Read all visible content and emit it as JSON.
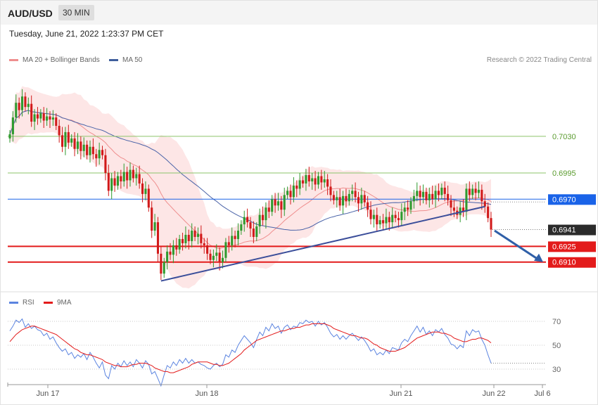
{
  "header": {
    "pair": "AUD/USD",
    "timeframe": "30 MIN",
    "datetime": "Tuesday, June 21, 2022 1:23:37 PM CET",
    "copyright": "Research © 2022 Trading Central"
  },
  "legend": {
    "ma20_label": "MA 20 + Bollinger Bands",
    "ma50_label": "MA 50",
    "rsi_label": "RSI",
    "ma9_label": "9MA"
  },
  "colors": {
    "bull": "#2e9a2e",
    "bear": "#d11a1a",
    "ma20": "#ef8e8e",
    "bollinger_fill": "#fde2e2",
    "ma50": "#4a63a8",
    "resistance": "#8cc46a",
    "support": "#e31b1b",
    "pivot": "#1a63e8",
    "trend": "#3b4e9a",
    "rsi": "#5b84e0",
    "rsi_ma": "#e31b1b"
  },
  "chart_data": [
    {
      "type": "candlestick",
      "title": "AUD/USD",
      "timeframe": "30 MIN",
      "x_tick_labels": [
        "Jun 17",
        "Jun 18",
        "Jun 21",
        "Jun 22",
        "Jul 6"
      ],
      "ylim": [
        0.6885,
        0.7095
      ],
      "last_price": 0.6941,
      "levels": [
        {
          "value": 0.703,
          "label": "0.7030",
          "role": "resistance",
          "line": "thin-green"
        },
        {
          "value": 0.6995,
          "label": "0.6995",
          "role": "resistance",
          "line": "thin-green"
        },
        {
          "value": 0.697,
          "label": "0.6970",
          "role": "pivot",
          "line": "blue"
        },
        {
          "value": 0.6941,
          "label": "0.6941",
          "role": "last-price",
          "line": "dotted"
        },
        {
          "value": 0.6925,
          "label": "0.6925",
          "role": "support",
          "line": "thick-red"
        },
        {
          "value": 0.691,
          "label": "0.6910",
          "role": "support",
          "line": "thick-red"
        }
      ],
      "indicators": [
        "MA 20 + Bollinger Bands",
        "MA 50"
      ],
      "annotations": [
        "rising trendline from Jun 18 low",
        "down arrow toward 0.6910"
      ],
      "series": [
        {
          "name": "close",
          "values": [
            0.7032,
            0.7048,
            0.7062,
            0.7055,
            0.7068,
            0.7058,
            0.7061,
            0.7044,
            0.7051,
            0.7047,
            0.7052,
            0.7045,
            0.7049,
            0.7046,
            0.7048,
            0.704,
            0.7031,
            0.702,
            0.7034,
            0.7024,
            0.7028,
            0.7018,
            0.7025,
            0.7016,
            0.7022,
            0.7012,
            0.702,
            0.7013,
            0.7009,
            0.7017,
            0.7012,
            0.6995,
            0.6978,
            0.699,
            0.6983,
            0.6992,
            0.6987,
            0.6996,
            0.6988,
            0.6998,
            0.699,
            0.6994,
            0.6985,
            0.6975,
            0.698,
            0.6962,
            0.694,
            0.6948,
            0.6918,
            0.6899,
            0.691,
            0.692,
            0.6917,
            0.6926,
            0.6922,
            0.6932,
            0.6928,
            0.6936,
            0.693,
            0.694,
            0.6934,
            0.6937,
            0.6928,
            0.6926,
            0.6918,
            0.6912,
            0.6916,
            0.6919,
            0.691,
            0.6914,
            0.6929,
            0.6926,
            0.6935,
            0.6932,
            0.694,
            0.6946,
            0.6953,
            0.6948,
            0.6942,
            0.6934,
            0.6944,
            0.6955,
            0.695,
            0.6962,
            0.6958,
            0.697,
            0.6964,
            0.6968,
            0.696,
            0.6974,
            0.6978,
            0.6972,
            0.6983,
            0.698,
            0.6988,
            0.6985,
            0.6993,
            0.6987,
            0.699,
            0.6984,
            0.6992,
            0.6986,
            0.6989,
            0.6982,
            0.6974,
            0.6969,
            0.6972,
            0.6964,
            0.6973,
            0.6968,
            0.6975,
            0.6978,
            0.6972,
            0.6966,
            0.6974,
            0.6967,
            0.696,
            0.6951,
            0.6955,
            0.6946,
            0.695,
            0.6947,
            0.6953,
            0.6948,
            0.6955,
            0.6952,
            0.695,
            0.6958,
            0.6962,
            0.696,
            0.6968,
            0.6973,
            0.6978,
            0.6972,
            0.6977,
            0.6969,
            0.6975,
            0.697,
            0.6978,
            0.6974,
            0.6981,
            0.6975,
            0.6969,
            0.6962,
            0.6959,
            0.6955,
            0.6962,
            0.6958,
            0.698,
            0.6974,
            0.698,
            0.6976,
            0.6979,
            0.6968,
            0.6963,
            0.6952,
            0.6941
          ]
        }
      ]
    },
    {
      "type": "line",
      "title": "RSI",
      "ylim": [
        20,
        80
      ],
      "y_ticks": [
        70,
        50,
        30
      ],
      "series": [
        {
          "name": "RSI",
          "values": [
            62,
            66,
            71,
            69,
            72,
            65,
            68,
            64,
            66,
            63,
            62,
            58,
            60,
            55,
            57,
            52,
            48,
            45,
            47,
            42,
            44,
            39,
            42,
            40,
            43,
            38,
            44,
            40,
            35,
            31,
            36,
            25,
            22,
            33,
            30,
            35,
            32,
            37,
            33,
            36,
            32,
            38,
            35,
            31,
            37,
            34,
            26,
            28,
            22,
            16,
            25,
            33,
            31,
            36,
            33,
            38,
            35,
            39,
            35,
            38,
            35,
            36,
            34,
            33,
            31,
            30,
            33,
            35,
            32,
            34,
            42,
            40,
            46,
            44,
            50,
            54,
            58,
            55,
            52,
            48,
            55,
            61,
            58,
            65,
            62,
            68,
            64,
            66,
            60,
            65,
            67,
            63,
            66,
            65,
            69,
            68,
            71,
            69,
            70,
            66,
            70,
            67,
            69,
            65,
            60,
            57,
            59,
            55,
            58,
            55,
            58,
            60,
            57,
            54,
            57,
            54,
            50,
            45,
            47,
            42,
            44,
            42,
            46,
            43,
            48,
            47,
            46,
            52,
            55,
            53,
            58,
            62,
            66,
            61,
            65,
            59,
            62,
            58,
            63,
            61,
            64,
            59,
            56,
            51,
            50,
            47,
            50,
            48,
            62,
            58,
            63,
            61,
            62,
            55,
            50,
            42,
            35
          ]
        },
        {
          "name": "9MA",
          "values": [
            53,
            56,
            59,
            61,
            63,
            64,
            65,
            66,
            66,
            65,
            64,
            63,
            62,
            61,
            60,
            59,
            57,
            55,
            53,
            51,
            49,
            47,
            46,
            44,
            43,
            42,
            42,
            41,
            40,
            39,
            38,
            36,
            35,
            34,
            33,
            33,
            32,
            32,
            32,
            33,
            34,
            34,
            35,
            35,
            35,
            34,
            33,
            31,
            30,
            29,
            28,
            28,
            27,
            27,
            28,
            29,
            30,
            31,
            32,
            34,
            35,
            36,
            36,
            36,
            36,
            35,
            34,
            34,
            33,
            33,
            34,
            35,
            37,
            39,
            41,
            43,
            46,
            48,
            50,
            52,
            54,
            55,
            56,
            57,
            58,
            59,
            60,
            61,
            62,
            62,
            63,
            64,
            64,
            65,
            65,
            66,
            67,
            67,
            68,
            68,
            68,
            68,
            68,
            67,
            66,
            64,
            63,
            62,
            61,
            60,
            59,
            58,
            58,
            57,
            56,
            56,
            55,
            53,
            51,
            50,
            48,
            47,
            46,
            45,
            45,
            45,
            46,
            47,
            48,
            50,
            52,
            54,
            56,
            57,
            58,
            59,
            60,
            61,
            61,
            61,
            60,
            60,
            59,
            58,
            56,
            55,
            54,
            53,
            53,
            54,
            55,
            55,
            56,
            56,
            55,
            54,
            52
          ]
        }
      ]
    }
  ],
  "line_style": {
    "thin": 1,
    "thick": 2
  }
}
